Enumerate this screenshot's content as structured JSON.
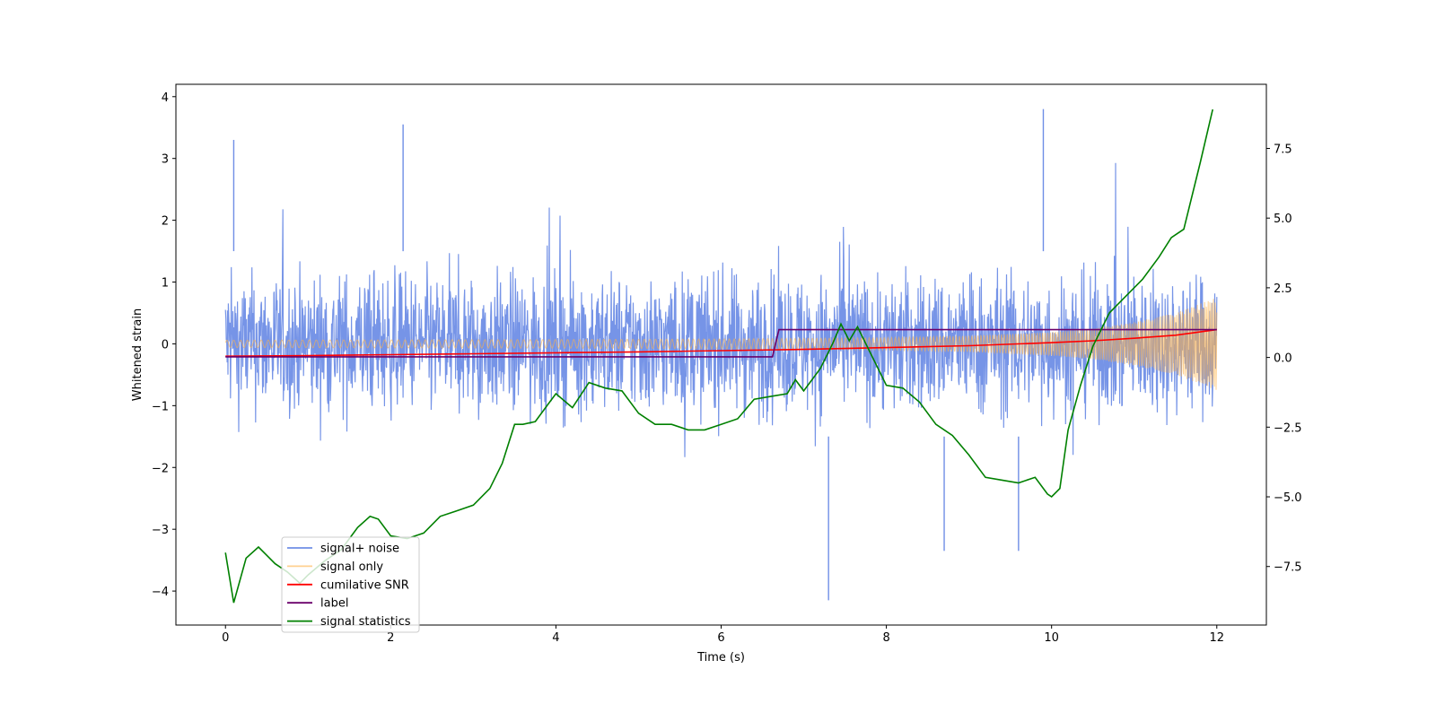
{
  "chart_data": {
    "type": "line",
    "title": "",
    "xlabel": "Time (s)",
    "ylabel": "Whitened strain",
    "y2label": "",
    "xlim": [
      -0.6,
      12.6
    ],
    "ylim": [
      -4.55,
      4.2
    ],
    "y2lim": [
      -9.6,
      9.8
    ],
    "x_ticks": [
      0,
      2,
      4,
      6,
      8,
      10,
      12
    ],
    "y_ticks": [
      -4,
      -3,
      -2,
      -1,
      0,
      1,
      2,
      3,
      4
    ],
    "y2_ticks": [
      -7.5,
      -5.0,
      -2.5,
      0.0,
      2.5,
      5.0,
      7.5
    ],
    "legend_position": "lower-left",
    "grid": false,
    "series": [
      {
        "name": "signal+ noise",
        "axis": "left",
        "color": "#6f8ee6",
        "kind": "noise-band",
        "x_range": [
          0,
          12
        ],
        "typical_range": [
          -1.6,
          1.6
        ],
        "peak_values": [
          [
            0.1,
            3.3
          ],
          [
            2.15,
            3.55
          ],
          [
            9.9,
            3.8
          ],
          [
            7.3,
            -4.15
          ],
          [
            8.7,
            -3.35
          ],
          [
            9.6,
            -3.35
          ]
        ]
      },
      {
        "name": "signal only",
        "axis": "left",
        "color": "#ffb347",
        "kind": "chirp",
        "x": [
          0,
          2,
          4,
          6,
          8,
          9,
          10,
          10.5,
          11,
          11.5,
          12
        ],
        "amplitude": [
          0.06,
          0.065,
          0.07,
          0.08,
          0.1,
          0.13,
          0.19,
          0.25,
          0.35,
          0.5,
          0.75
        ]
      },
      {
        "name": "cumilative SNR",
        "axis": "left",
        "color": "#ff0000",
        "x": [
          0,
          1,
          2,
          3,
          4,
          5,
          6,
          7,
          8,
          9,
          10,
          10.5,
          11,
          11.5,
          12
        ],
        "y": [
          -0.2,
          -0.19,
          -0.175,
          -0.16,
          -0.145,
          -0.13,
          -0.11,
          -0.09,
          -0.06,
          -0.03,
          0.02,
          0.05,
          0.09,
          0.14,
          0.23
        ]
      },
      {
        "name": "label",
        "axis": "left",
        "color": "#6a006a",
        "x": [
          0,
          6.62,
          6.7,
          12
        ],
        "y": [
          -0.21,
          -0.21,
          0.23,
          0.23
        ]
      },
      {
        "name": "signal statistics",
        "axis": "right",
        "color": "#008000",
        "x": [
          0,
          0.1,
          0.25,
          0.4,
          0.5,
          0.6,
          0.75,
          0.9,
          1.0,
          1.2,
          1.4,
          1.6,
          1.75,
          1.85,
          2.0,
          2.2,
          2.4,
          2.6,
          2.8,
          3.0,
          3.2,
          3.35,
          3.5,
          3.6,
          3.75,
          3.9,
          4.0,
          4.2,
          4.4,
          4.6,
          4.8,
          5.0,
          5.2,
          5.4,
          5.6,
          5.8,
          6.0,
          6.2,
          6.4,
          6.6,
          6.8,
          6.9,
          7.0,
          7.2,
          7.35,
          7.45,
          7.55,
          7.65,
          7.8,
          8.0,
          8.2,
          8.4,
          8.6,
          8.8,
          9.0,
          9.2,
          9.4,
          9.6,
          9.8,
          9.95,
          10.0,
          10.1,
          10.2,
          10.35,
          10.5,
          10.7,
          10.9,
          11.1,
          11.3,
          11.45,
          11.6,
          11.8,
          11.95
        ],
        "y": [
          -7.0,
          -8.8,
          -7.2,
          -6.8,
          -7.1,
          -7.4,
          -7.7,
          -8.1,
          -7.8,
          -7.3,
          -6.9,
          -6.1,
          -5.7,
          -5.8,
          -6.4,
          -6.5,
          -6.3,
          -5.7,
          -5.5,
          -5.3,
          -4.7,
          -3.8,
          -2.4,
          -2.4,
          -2.3,
          -1.7,
          -1.3,
          -1.8,
          -0.9,
          -1.1,
          -1.2,
          -2.0,
          -2.4,
          -2.4,
          -2.6,
          -2.6,
          -2.4,
          -2.2,
          -1.5,
          -1.4,
          -1.3,
          -0.8,
          -1.2,
          -0.4,
          0.5,
          1.2,
          0.6,
          1.1,
          0.2,
          -1.0,
          -1.1,
          -1.6,
          -2.4,
          -2.8,
          -3.5,
          -4.3,
          -4.4,
          -4.5,
          -4.3,
          -4.9,
          -5.0,
          -4.7,
          -2.6,
          -1.0,
          0.4,
          1.6,
          2.2,
          2.8,
          3.6,
          4.3,
          4.6,
          7.0,
          8.9
        ]
      }
    ]
  }
}
